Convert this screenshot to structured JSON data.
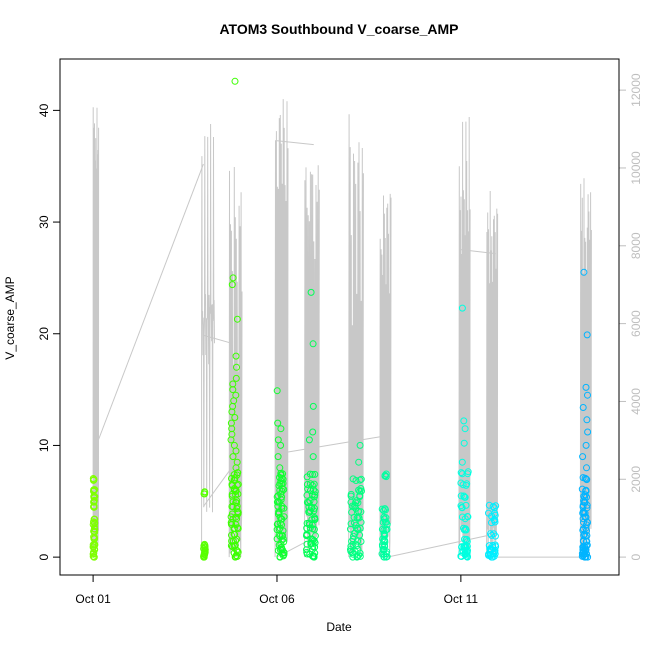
{
  "chart_data": {
    "type": "scatter",
    "title": "ATOM3 Southbound V_coarse_AMP",
    "xlabel": "Date",
    "ylabel": "V_coarse_AMP",
    "x_ticks": [
      "Oct 01",
      "Oct 06",
      "Oct 11"
    ],
    "x_tick_positions_days": [
      1,
      6,
      11
    ],
    "xlim_days": [
      0.1,
      15.3
    ],
    "ylim": [
      -1.6,
      44.6
    ],
    "y_ticks": [
      0,
      10,
      20,
      30,
      40
    ],
    "y2lim": [
      -460,
      12800
    ],
    "y2_ticks": [
      0,
      2000,
      4000,
      6000,
      8000,
      10000,
      12000
    ],
    "grid": false,
    "legend": "none",
    "colors": {
      "secondary_line": "#c8c8c8",
      "secondary_axis": "#bebebe",
      "axis": "#000000"
    },
    "series": [
      {
        "color": "#7fff00",
        "x_range": [
          1.0,
          1.05
        ],
        "values": [
          0,
          0.4,
          0.8,
          1.2,
          1.7,
          2.2,
          2.6,
          3.0,
          3.3,
          4.5,
          5.0,
          5.4,
          6.0,
          7.0
        ]
      },
      {
        "color": "#58ff00",
        "x_range": [
          4.0,
          4.05
        ],
        "values": [
          0,
          0.2,
          0.5,
          0.8,
          1.0,
          5.8
        ]
      },
      {
        "color": "#3cff00",
        "x_range": [
          4.75,
          4.95
        ],
        "values": [
          0,
          0.5,
          1,
          1.5,
          2,
          2.5,
          3,
          3.5,
          4,
          4.5,
          5,
          5.5,
          6,
          6.5,
          7,
          7.5,
          8,
          8.5,
          9,
          9.5,
          10,
          10.5,
          11,
          11.5,
          12,
          12.5,
          13,
          13.5,
          14,
          14.5,
          15,
          15.5,
          16,
          17,
          18,
          21.3,
          24.4,
          25,
          42.6
        ]
      },
      {
        "color": "#10ff30",
        "x_range": [
          6.0,
          6.2
        ],
        "values": [
          0,
          0.3,
          0.6,
          1,
          1.5,
          2,
          2.5,
          3,
          3.5,
          4,
          4.5,
          5,
          5.5,
          6,
          6.5,
          7,
          7.5,
          8,
          9,
          10,
          10.5,
          11.5,
          12,
          14.9
        ]
      },
      {
        "color": "#00ff55",
        "x_range": [
          6.8,
          7.05
        ],
        "values": [
          0,
          0.4,
          0.8,
          1.2,
          1.6,
          2,
          2.5,
          3,
          3.5,
          4,
          4.5,
          5,
          5.5,
          6,
          6.5,
          7.3,
          9,
          10.5,
          11.2,
          13.5,
          19.1,
          23.7
        ]
      },
      {
        "color": "#00ff80",
        "x_range": [
          8.0,
          8.3
        ],
        "values": [
          0,
          0.3,
          0.6,
          1,
          1.5,
          2,
          2.5,
          3,
          3.5,
          4,
          4.5,
          5,
          5.5,
          6,
          7,
          8.5,
          10
        ]
      },
      {
        "color": "#00ffa0",
        "x_range": [
          8.85,
          9.0
        ],
        "values": [
          0,
          0.3,
          0.6,
          1,
          1.5,
          2,
          2.5,
          3,
          3.5,
          4.2,
          7.3
        ]
      },
      {
        "color": "#00ffe0",
        "x_range": [
          11.0,
          11.2
        ],
        "values": [
          0,
          0.2,
          0.4,
          0.6,
          0.8,
          1,
          1.5,
          2.5,
          3.5,
          4.5,
          5.5,
          6.5,
          7.5,
          8.5,
          10.2,
          11.5,
          12.2,
          22.3
        ]
      },
      {
        "color": "#00eeff",
        "x_range": [
          11.75,
          11.95
        ],
        "values": [
          0,
          0.2,
          0.4,
          0.6,
          0.8,
          1,
          2,
          3.2,
          3.8,
          4.5
        ]
      },
      {
        "color": "#00b4ff",
        "x_range": [
          14.3,
          14.45
        ],
        "values": [
          0,
          0.2,
          0.4,
          0.6,
          0.8,
          1,
          1.5,
          2,
          2.5,
          3,
          3.5,
          4,
          4.5,
          5,
          5.5,
          6,
          7,
          8,
          9,
          10,
          11.2,
          12.3,
          13.4,
          14.5,
          15.2,
          19.9,
          25.5
        ]
      }
    ],
    "secondary_series": {
      "axis": "right",
      "segments": [
        {
          "x": [
            1.0,
            1.15
          ],
          "y": [
            0,
            11700
          ],
          "peaks": [
            11700,
            11500,
            3000
          ]
        },
        {
          "x": [
            3.95,
            4.3
          ],
          "y": [
            5650,
            12000
          ],
          "peaks": [
            12000,
            5600,
            1300
          ]
        },
        {
          "x": [
            4.7,
            5.05
          ],
          "y": [
            0,
            10200
          ],
          "peaks": [
            10200,
            9800,
            9500,
            8000,
            5000
          ]
        },
        {
          "x": [
            5.95,
            6.3
          ],
          "y": [
            0,
            12200
          ],
          "peaks": [
            12200,
            11500,
            10800,
            9800
          ]
        },
        {
          "x": [
            6.75,
            7.15
          ],
          "y": [
            0,
            10800
          ],
          "peaks": [
            10800,
            10600,
            10200,
            9500,
            8700
          ]
        },
        {
          "x": [
            7.95,
            8.35
          ],
          "y": [
            0,
            11800
          ],
          "peaks": [
            11800,
            10700,
            9600,
            7000
          ]
        },
        {
          "x": [
            8.8,
            9.1
          ],
          "y": [
            0,
            9500
          ],
          "peaks": [
            9500,
            9300,
            9000,
            7500
          ]
        },
        {
          "x": [
            10.95,
            11.25
          ],
          "y": [
            0,
            11400
          ],
          "peaks": [
            11400,
            10300,
            9800,
            8500
          ]
        },
        {
          "x": [
            11.7,
            12.0
          ],
          "y": [
            0,
            9800
          ],
          "peaks": [
            9800,
            9200,
            8800,
            7500
          ]
        },
        {
          "x": [
            14.25,
            14.55
          ],
          "y": [
            0,
            9800
          ],
          "peaks": [
            9800,
            9600,
            9300,
            8200
          ]
        }
      ],
      "connectors": [
        [
          1.1,
          2900,
          4.0,
          10100
        ],
        [
          4.0,
          5700,
          4.75,
          5500
        ],
        [
          4.0,
          1300,
          5.0,
          2600
        ],
        [
          6.0,
          10700,
          7.0,
          10600
        ],
        [
          6.0,
          0,
          7.0,
          500
        ],
        [
          6.3,
          2700,
          8.85,
          3100
        ],
        [
          11.0,
          7900,
          11.95,
          7800
        ],
        [
          9.0,
          0,
          11.95,
          600
        ],
        [
          12.0,
          0,
          14.3,
          0
        ]
      ]
    }
  }
}
